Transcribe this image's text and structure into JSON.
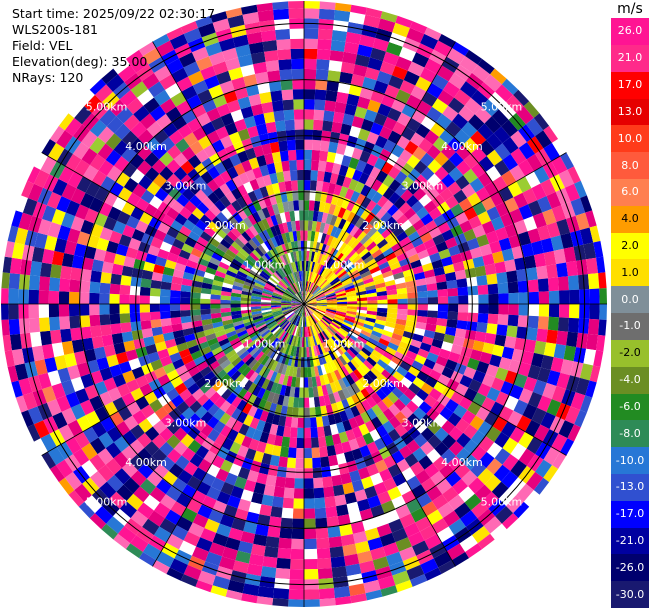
{
  "header": {
    "start_time": "Start time: 2025/09/22 02:30:17",
    "instrument": "WLS200s-181",
    "field": "Field: VEL",
    "elevation": "Elevation(deg): 35.00",
    "nrays": "NRays: 120"
  },
  "chart_data": {
    "type": "heatmap",
    "projection": "polar-ppi",
    "field": "VEL",
    "units": "m/s",
    "n_rays": 120,
    "range_rings_km": [
      1,
      2,
      3,
      4,
      5
    ],
    "ring_labels": [
      "1.00km",
      "2.00km",
      "3.00km",
      "4.00km",
      "5.00km"
    ],
    "max_range_km": 5.4,
    "colorbar": {
      "title": "m/s",
      "ticks": [
        "26.0",
        "21.0",
        "17.0",
        "13.0",
        "10.0",
        "8.0",
        "6.0",
        "4.0",
        "2.0",
        "1.0",
        "0.0",
        "-1.0",
        "-2.0",
        "-4.0",
        "-6.0",
        "-8.0",
        "-10.0",
        "-13.0",
        "-17.0",
        "-21.0",
        "-26.0",
        "-30.0"
      ],
      "colors": [
        "#ff1493",
        "#ff2a8a",
        "#ff0000",
        "#e60000",
        "#ff3b1a",
        "#ff5a3c",
        "#ff7f50",
        "#ff9c00",
        "#ffff00",
        "#ffdf00",
        "#7f8f99",
        "#6e6e6e",
        "#98c02c",
        "#6b8e23",
        "#228b22",
        "#2e8b57",
        "#2777d6",
        "#3050d0",
        "#0000ff",
        "#0000a0",
        "#00006e",
        "#191970"
      ]
    }
  }
}
